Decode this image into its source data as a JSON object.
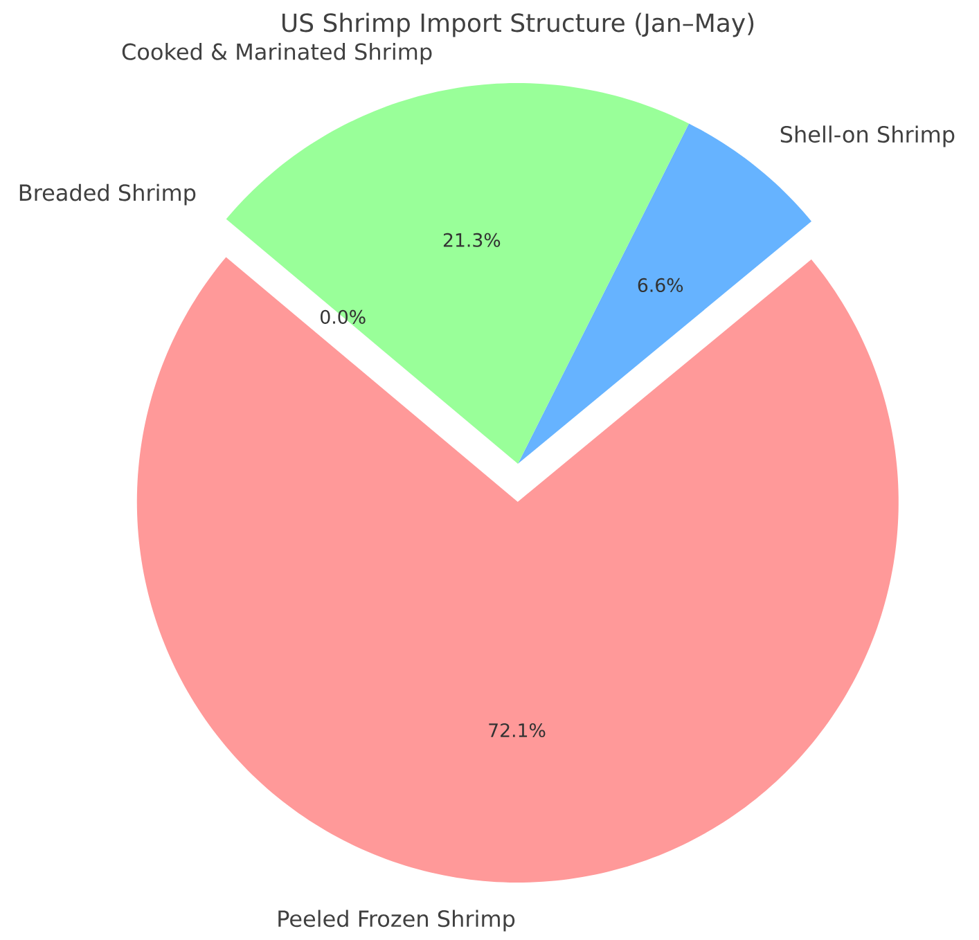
{
  "chart_data": {
    "type": "pie",
    "title": "US Shrimp Import Structure (Jan–May)",
    "categories": [
      "Peeled Frozen Shrimp",
      "Shell-on Shrimp",
      "Cooked & Marinated Shrimp",
      "Breaded Shrimp"
    ],
    "values": [
      72.1,
      6.6,
      21.3,
      0.0
    ],
    "colors": [
      "#ff9999",
      "#66b3ff",
      "#99ff99",
      "#ffcc99"
    ],
    "value_labels": [
      "72.1%",
      "6.6%",
      "21.3%",
      "0.0%"
    ]
  }
}
